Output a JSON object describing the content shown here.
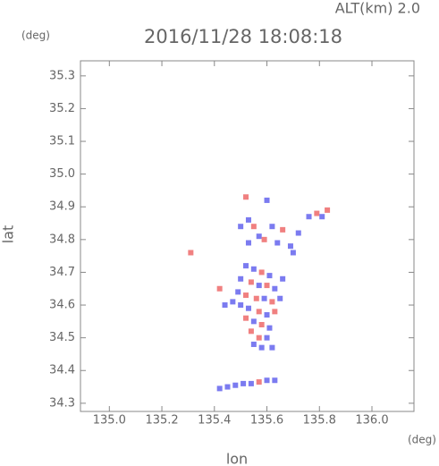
{
  "chart_data": {
    "type": "scatter",
    "title": "2016/11/28 18:08:18",
    "subtitle": "ALT(km) 2.0",
    "x_label": "lon",
    "y_label": "lat",
    "x_unit": "(deg)",
    "y_unit": "(deg)",
    "xlim": [
      134.89,
      136.16
    ],
    "ylim": [
      34.275,
      35.346
    ],
    "xticks": [
      {
        "value": 135.0,
        "label": "135.0"
      },
      135.2,
      135.4,
      135.6,
      135.8,
      {
        "value": 136.0,
        "label": "136.0"
      }
    ],
    "yticks": [
      34.3,
      34.4,
      34.5,
      34.6,
      34.7,
      34.8,
      34.9,
      {
        "value": 35.0,
        "label": "35.0"
      },
      35.1,
      35.2,
      35.3
    ],
    "grid": false,
    "x": [
      135.52,
      135.6,
      135.53,
      135.55,
      135.5,
      135.57,
      135.59,
      135.62,
      135.64,
      135.66,
      135.69,
      135.72,
      135.76,
      135.79,
      135.83,
      135.81,
      135.7,
      135.53,
      135.31,
      135.52,
      135.55,
      135.58,
      135.61,
      135.5,
      135.54,
      135.57,
      135.6,
      135.63,
      135.49,
      135.52,
      135.56,
      135.59,
      135.62,
      135.65,
      135.47,
      135.5,
      135.53,
      135.57,
      135.6,
      135.63,
      135.52,
      135.55,
      135.58,
      135.61,
      135.54,
      135.57,
      135.6,
      135.55,
      135.58,
      135.62,
      135.44,
      135.42,
      135.66,
      135.42,
      135.45,
      135.48,
      135.51,
      135.54,
      135.57,
      135.6,
      135.63
    ],
    "values": [
      34.93,
      34.92,
      34.86,
      34.84,
      34.84,
      34.81,
      34.8,
      34.84,
      34.79,
      34.83,
      34.78,
      34.82,
      34.87,
      34.88,
      34.89,
      34.87,
      34.76,
      34.79,
      34.76,
      34.72,
      34.71,
      34.7,
      34.69,
      34.68,
      34.67,
      34.66,
      34.66,
      34.65,
      34.64,
      34.63,
      34.62,
      34.62,
      34.61,
      34.62,
      34.61,
      34.6,
      34.59,
      34.58,
      34.57,
      34.58,
      34.56,
      34.55,
      34.54,
      34.53,
      34.52,
      34.5,
      34.5,
      34.48,
      34.47,
      34.47,
      34.6,
      34.65,
      34.68,
      34.345,
      34.35,
      34.355,
      34.36,
      34.36,
      34.365,
      34.37,
      34.37
    ],
    "colors": [
      "#f08080",
      "#7b7bf0",
      "#7b7bf0",
      "#f08080",
      "#7b7bf0",
      "#7b7bf0",
      "#f08080",
      "#7b7bf0",
      "#7b7bf0",
      "#f08080",
      "#7b7bf0",
      "#7b7bf0",
      "#7b7bf0",
      "#f08080",
      "#f08080",
      "#7b7bf0",
      "#7b7bf0",
      "#7b7bf0",
      "#f08080",
      "#7b7bf0",
      "#7b7bf0",
      "#f08080",
      "#7b7bf0",
      "#7b7bf0",
      "#f08080",
      "#7b7bf0",
      "#f08080",
      "#7b7bf0",
      "#7b7bf0",
      "#f08080",
      "#f08080",
      "#7b7bf0",
      "#f08080",
      "#7b7bf0",
      "#7b7bf0",
      "#7b7bf0",
      "#7b7bf0",
      "#f08080",
      "#7b7bf0",
      "#f08080",
      "#f08080",
      "#7b7bf0",
      "#f08080",
      "#7b7bf0",
      "#f08080",
      "#f08080",
      "#7b7bf0",
      "#7b7bf0",
      "#7b7bf0",
      "#7b7bf0",
      "#7b7bf0",
      "#f08080",
      "#7b7bf0",
      "#7b7bf0",
      "#7b7bf0",
      "#7b7bf0",
      "#7b7bf0",
      "#7b7bf0",
      "#f08080",
      "#7b7bf0",
      "#7b7bf0"
    ]
  }
}
